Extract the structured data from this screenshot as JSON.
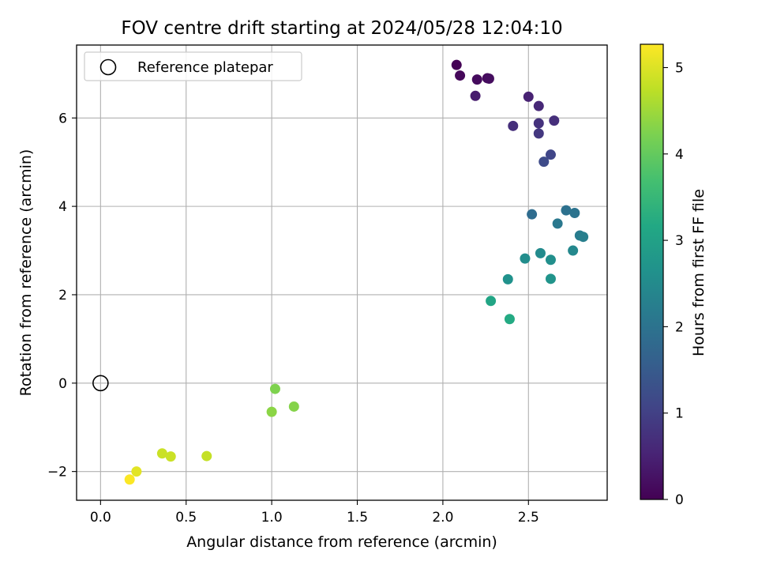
{
  "chart_data": {
    "type": "scatter",
    "title": "FOV centre drift starting at 2024/05/28 12:04:10",
    "xlabel": "Angular distance from reference (arcmin)",
    "ylabel": "Rotation from reference (arcmin)",
    "xlim": [
      -0.14,
      2.96
    ],
    "ylim": [
      -2.65,
      7.65
    ],
    "xticks": [
      0.0,
      0.5,
      1.0,
      1.5,
      2.0,
      2.5
    ],
    "xtick_labels": [
      "0.0",
      "0.5",
      "1.0",
      "1.5",
      "2.0",
      "2.5"
    ],
    "yticks": [
      -2,
      0,
      2,
      4,
      6
    ],
    "ytick_labels": [
      "−2",
      "0",
      "2",
      "4",
      "6"
    ],
    "grid": true,
    "legend": {
      "position": "top-left",
      "entries": [
        {
          "label": "Reference platepar",
          "marker": "open-circle"
        }
      ]
    },
    "reference_point": {
      "x": 0.0,
      "y": 0.0
    },
    "colorbar": {
      "label": "Hours from first FF file",
      "colormap": "viridis",
      "range": [
        0,
        5.27
      ],
      "ticks": [
        0,
        1,
        2,
        3,
        4,
        5
      ],
      "tick_labels": [
        "0",
        "1",
        "2",
        "3",
        "4",
        "5"
      ]
    },
    "points": [
      {
        "x": 2.08,
        "y": 7.2,
        "c": 0.02
      },
      {
        "x": 2.1,
        "y": 6.96,
        "c": 0.1
      },
      {
        "x": 2.2,
        "y": 6.87,
        "c": 0.15
      },
      {
        "x": 2.26,
        "y": 6.9,
        "c": 0.12
      },
      {
        "x": 2.27,
        "y": 6.89,
        "c": 0.18
      },
      {
        "x": 2.19,
        "y": 6.5,
        "c": 0.4
      },
      {
        "x": 2.5,
        "y": 6.48,
        "c": 0.5
      },
      {
        "x": 2.56,
        "y": 6.27,
        "c": 0.6
      },
      {
        "x": 2.65,
        "y": 5.94,
        "c": 0.7
      },
      {
        "x": 2.56,
        "y": 5.88,
        "c": 0.75
      },
      {
        "x": 2.41,
        "y": 5.82,
        "c": 0.7
      },
      {
        "x": 2.56,
        "y": 5.65,
        "c": 0.85
      },
      {
        "x": 2.63,
        "y": 5.17,
        "c": 1.1
      },
      {
        "x": 2.59,
        "y": 5.01,
        "c": 1.2
      },
      {
        "x": 2.52,
        "y": 3.82,
        "c": 1.85
      },
      {
        "x": 2.72,
        "y": 3.91,
        "c": 1.95
      },
      {
        "x": 2.77,
        "y": 3.85,
        "c": 2.0
      },
      {
        "x": 2.67,
        "y": 3.61,
        "c": 2.1
      },
      {
        "x": 2.8,
        "y": 3.34,
        "c": 2.2
      },
      {
        "x": 2.82,
        "y": 3.31,
        "c": 2.25
      },
      {
        "x": 2.76,
        "y": 3.0,
        "c": 2.45
      },
      {
        "x": 2.57,
        "y": 2.94,
        "c": 2.5
      },
      {
        "x": 2.48,
        "y": 2.82,
        "c": 2.55
      },
      {
        "x": 2.63,
        "y": 2.79,
        "c": 2.6
      },
      {
        "x": 2.38,
        "y": 2.35,
        "c": 2.65
      },
      {
        "x": 2.63,
        "y": 2.36,
        "c": 2.7
      },
      {
        "x": 2.28,
        "y": 1.86,
        "c": 3.1
      },
      {
        "x": 2.39,
        "y": 1.45,
        "c": 3.2
      },
      {
        "x": 1.02,
        "y": -0.13,
        "c": 4.25
      },
      {
        "x": 1.0,
        "y": -0.65,
        "c": 4.35
      },
      {
        "x": 1.13,
        "y": -0.53,
        "c": 4.3
      },
      {
        "x": 0.62,
        "y": -1.65,
        "c": 4.8
      },
      {
        "x": 0.36,
        "y": -1.59,
        "c": 4.85
      },
      {
        "x": 0.41,
        "y": -1.66,
        "c": 4.85
      },
      {
        "x": 0.21,
        "y": -2.0,
        "c": 5.05
      },
      {
        "x": 0.17,
        "y": -2.18,
        "c": 5.25
      }
    ]
  }
}
